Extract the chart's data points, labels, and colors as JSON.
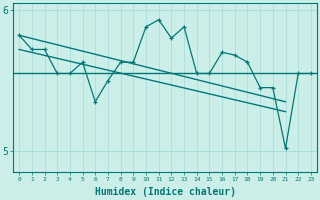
{
  "xlabel": "Humidex (Indice chaleur)",
  "bg_color": "#cceee8",
  "line_color": "#007878",
  "grid_color": "#aadddd",
  "x_data": [
    0,
    1,
    2,
    3,
    4,
    5,
    6,
    7,
    8,
    9,
    10,
    11,
    12,
    13,
    14,
    15,
    16,
    17,
    18,
    19,
    20,
    21,
    22,
    23
  ],
  "y_raw": [
    5.82,
    5.72,
    5.72,
    5.55,
    5.55,
    5.63,
    5.35,
    5.5,
    5.63,
    5.63,
    5.88,
    5.93,
    5.8,
    5.88,
    5.55,
    5.55,
    5.7,
    5.68,
    5.63,
    5.45,
    5.45,
    5.02,
    5.55,
    5.55
  ],
  "y_hline": 5.55,
  "trend1_start": 5.82,
  "trend1_end": 5.35,
  "trend2_start": 5.72,
  "trend2_end": 5.28,
  "ylim_min": 4.85,
  "ylim_max": 6.05,
  "yticks": [
    5,
    6
  ],
  "xlim_min": -0.5,
  "xlim_max": 23.5
}
